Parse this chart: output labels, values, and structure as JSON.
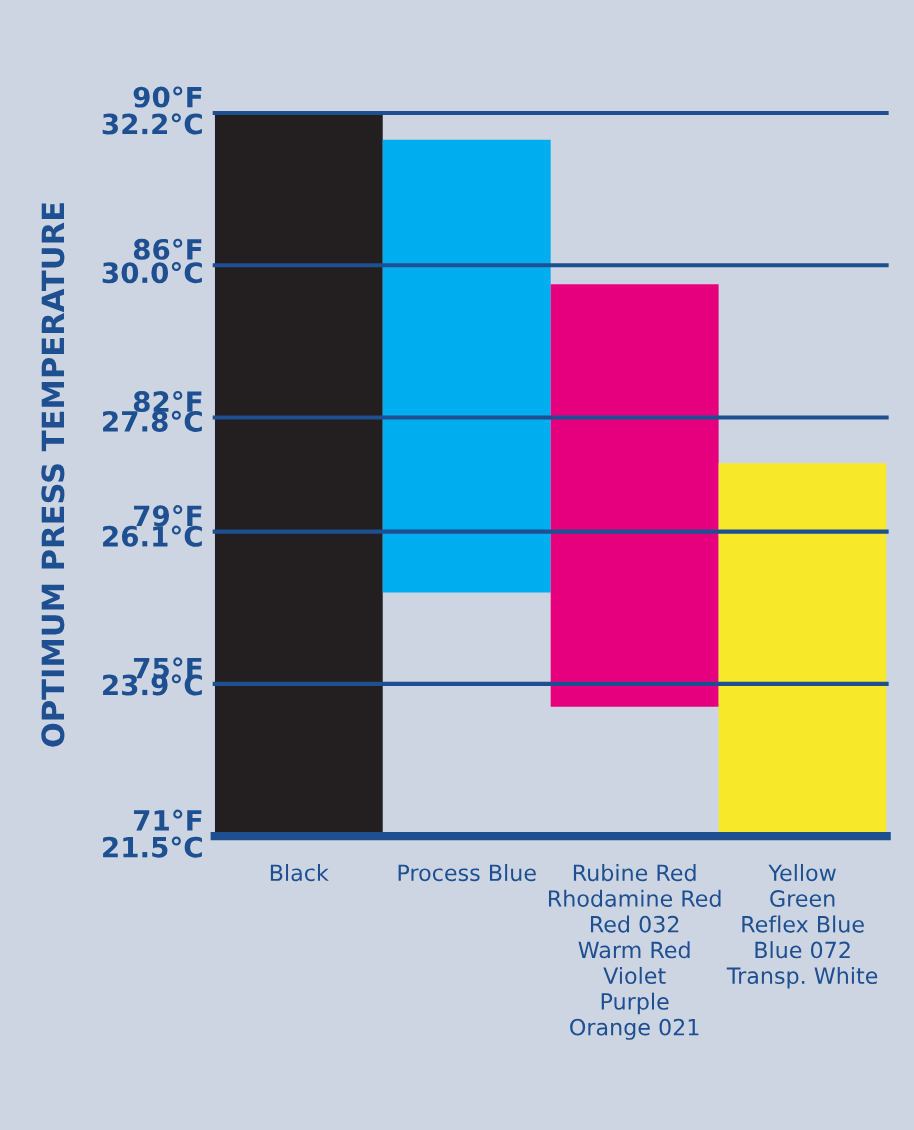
{
  "chart_data": {
    "type": "bar",
    "y2label": "OPTIMUM PRESS TEMPERATURE",
    "categories": [
      "Black",
      "Process Blue",
      "Rubine Red\nRhodamine Red\nRed 032\nWarm Red\nViolet\nPurple\nOrange 021",
      "Yellow\nGreen\nReflex Blue\nBlue 072\nTransp. White"
    ],
    "base": [
      71,
      77.4,
      74.4,
      71
    ],
    "values": [
      19,
      11.9,
      11.1,
      9.8
    ],
    "colors": [
      "#231f20",
      "#00aeef",
      "#e6007e",
      "#f7e829"
    ],
    "ylim": [
      71,
      90
    ],
    "yticks": [
      {
        "value": 90,
        "label": "90°F"
      },
      {
        "value": 86,
        "label": "86°F"
      },
      {
        "value": 82,
        "label": "82°F"
      },
      {
        "value": 79,
        "label": "79°F"
      },
      {
        "value": 75,
        "label": "75°F"
      },
      {
        "value": 71,
        "label": "71°F"
      }
    ],
    "y2lim": [
      21.5,
      32.2
    ],
    "y2ticks": [
      {
        "value": 32.2,
        "label": "32.2°C"
      },
      {
        "value": 30.0,
        "label": "30.0°C"
      },
      {
        "value": 27.8,
        "label": "27.8°C"
      },
      {
        "value": 26.1,
        "label": "26.1°C"
      },
      {
        "value": 23.9,
        "label": "23.9°C"
      },
      {
        "value": 21.5,
        "label": "21.5°C"
      }
    ],
    "grid": "y"
  }
}
